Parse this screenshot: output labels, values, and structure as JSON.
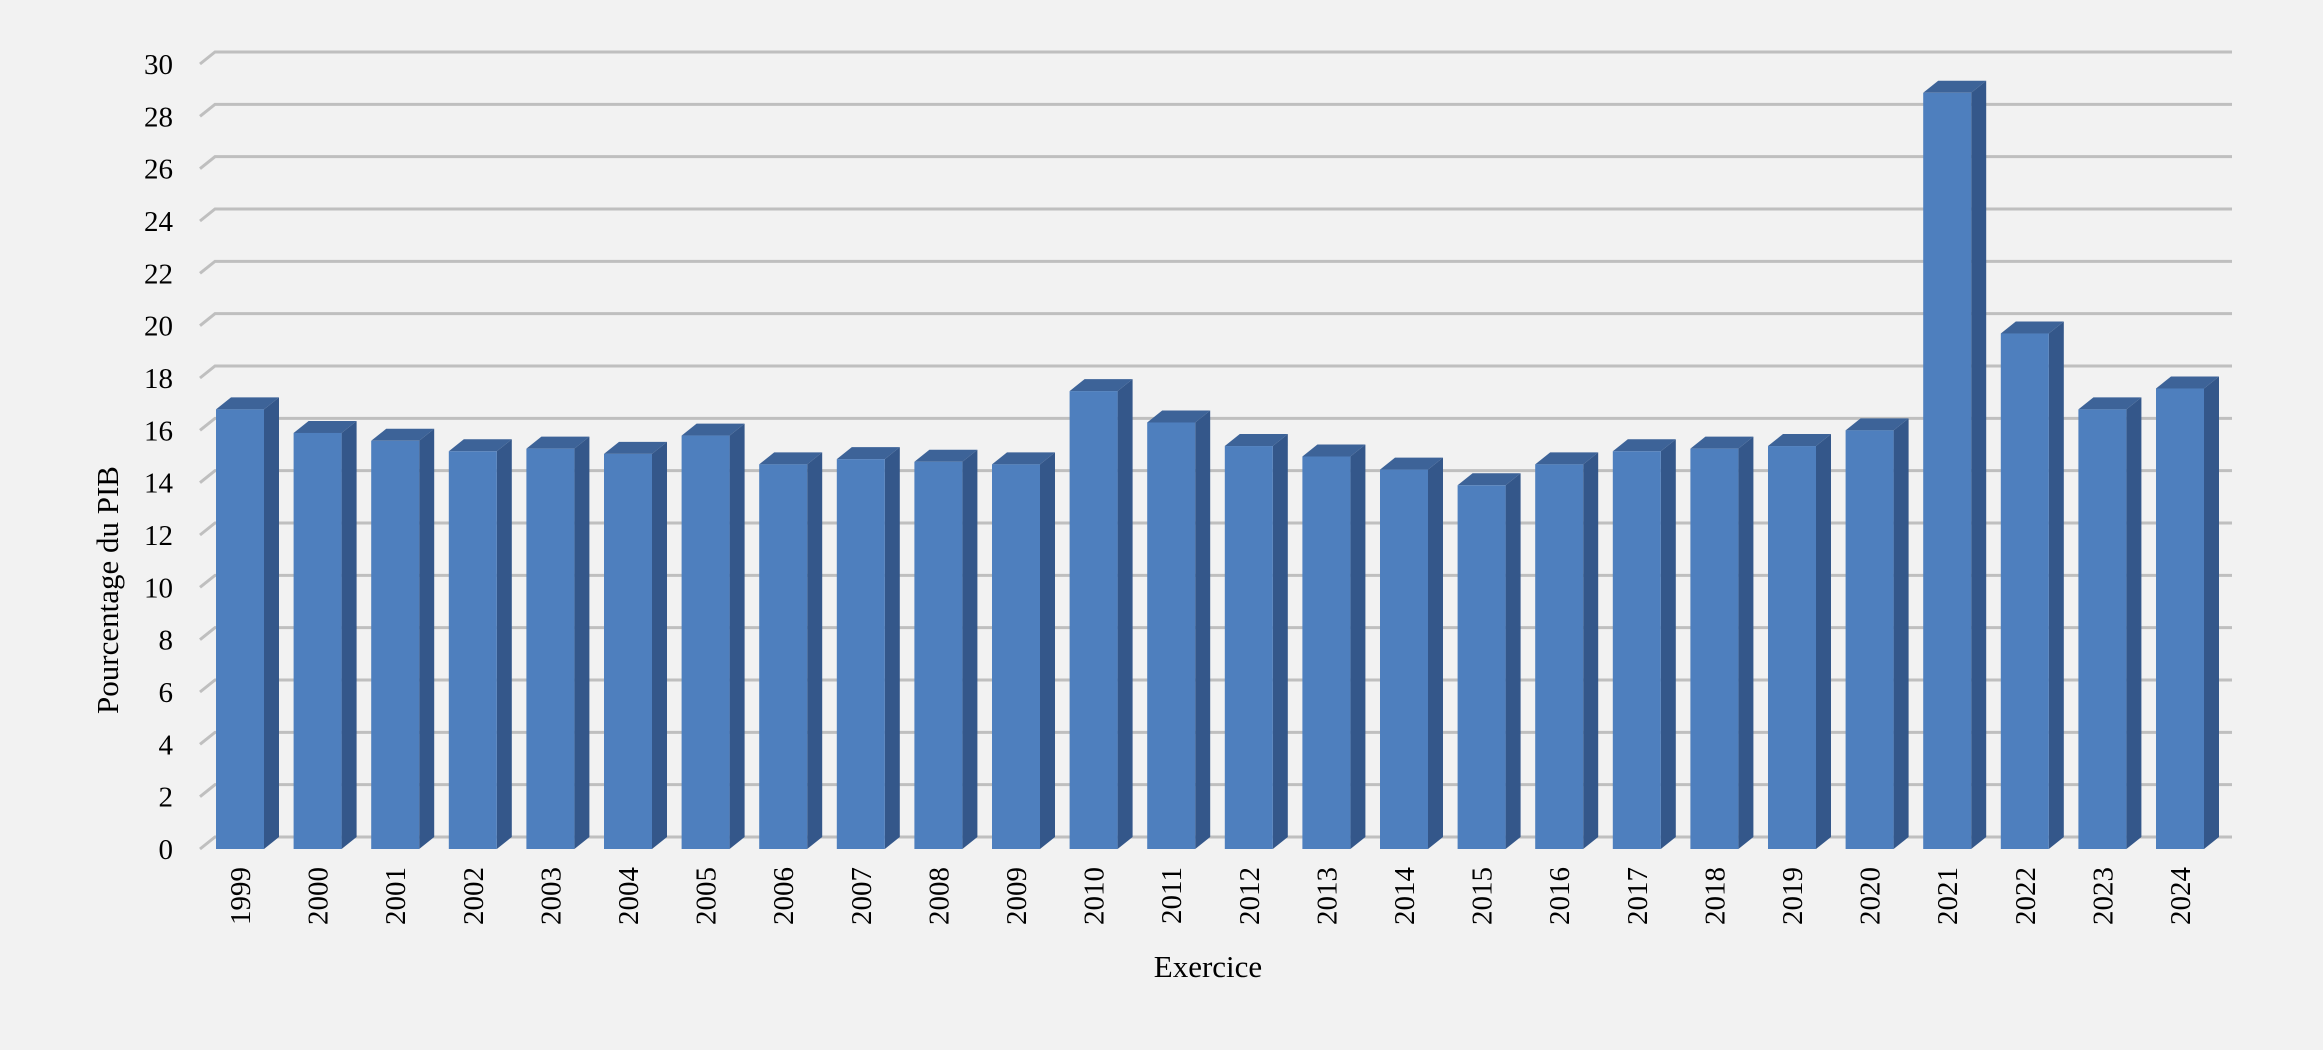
{
  "chart_data": {
    "type": "bar",
    "title": "",
    "xlabel": "Exercice",
    "ylabel": "Pourcentage du PIB",
    "ylim": [
      0,
      30
    ],
    "yticks": [
      0,
      2,
      4,
      6,
      8,
      10,
      12,
      14,
      16,
      18,
      20,
      22,
      24,
      26,
      28,
      30
    ],
    "grid": true,
    "legend": "none",
    "style": "3d-column",
    "colors": {
      "bar_front": "#4e7fbe",
      "bar_side": "#34578a",
      "bar_top": "#3d6398",
      "grid": "#bfbfbf",
      "background": "#f2f2f2"
    },
    "categories": [
      "1999",
      "2000",
      "2001",
      "2002",
      "2003",
      "2004",
      "2005",
      "2006",
      "2007",
      "2008",
      "2009",
      "2010",
      "2011",
      "2012",
      "2013",
      "2014",
      "2015",
      "2016",
      "2017",
      "2018",
      "2019",
      "2020",
      "2021",
      "2022",
      "2023",
      "2024"
    ],
    "values": [
      16.8,
      15.9,
      15.6,
      15.2,
      15.3,
      15.1,
      15.8,
      14.7,
      14.9,
      14.8,
      14.7,
      17.5,
      16.3,
      15.4,
      15.0,
      14.5,
      13.9,
      14.7,
      15.2,
      15.3,
      15.4,
      16.0,
      28.9,
      19.7,
      16.8,
      17.6
    ]
  }
}
